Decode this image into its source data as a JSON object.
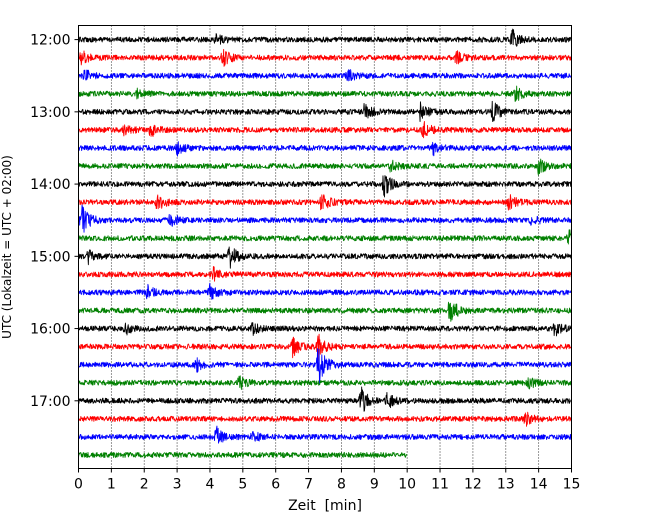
{
  "chart_data": {
    "type": "line",
    "title": "",
    "xlabel": "Zeit  [min]",
    "ylabel": "UTC (Lokalzeit = UTC + 02:00)",
    "xlim": [
      0,
      15
    ],
    "x_ticks": [
      "0",
      "1",
      "2",
      "3",
      "4",
      "5",
      "6",
      "7",
      "8",
      "9",
      "10",
      "11",
      "12",
      "13",
      "14",
      "15"
    ],
    "y_ticks": [
      "12:00",
      "13:00",
      "14:00",
      "15:00",
      "16:00",
      "17:00"
    ],
    "grid": "vertical dotted lines at each minute",
    "trace_interval_min": 15,
    "trace_colors": [
      "#000000",
      "#ff0000",
      "#0000ff",
      "#008000"
    ],
    "series": [
      {
        "start": "12:00",
        "end_min": 15,
        "color": "#000000",
        "events": [
          [
            4.2,
            5
          ],
          [
            13.2,
            9
          ]
        ]
      },
      {
        "start": "12:15",
        "end_min": 15,
        "color": "#ff0000",
        "events": [
          [
            0.1,
            7
          ],
          [
            4.4,
            8
          ],
          [
            11.5,
            6
          ]
        ]
      },
      {
        "start": "12:30",
        "end_min": 15,
        "color": "#0000ff",
        "events": [
          [
            0.2,
            6
          ],
          [
            8.2,
            6
          ]
        ]
      },
      {
        "start": "12:45",
        "end_min": 15,
        "color": "#008000",
        "events": [
          [
            1.8,
            4
          ],
          [
            13.3,
            7
          ]
        ]
      },
      {
        "start": "13:00",
        "end_min": 15,
        "color": "#000000",
        "events": [
          [
            8.7,
            8
          ],
          [
            10.4,
            9
          ],
          [
            12.6,
            10
          ]
        ]
      },
      {
        "start": "13:15",
        "end_min": 15,
        "color": "#ff0000",
        "events": [
          [
            1.4,
            5
          ],
          [
            2.2,
            7
          ],
          [
            10.5,
            8
          ]
        ]
      },
      {
        "start": "13:30",
        "end_min": 15,
        "color": "#0000ff",
        "events": [
          [
            3.0,
            6
          ],
          [
            10.8,
            6
          ]
        ]
      },
      {
        "start": "13:45",
        "end_min": 15,
        "color": "#008000",
        "events": [
          [
            14.0,
            8
          ],
          [
            9.5,
            5
          ]
        ]
      },
      {
        "start": "14:00",
        "end_min": 15,
        "color": "#000000",
        "events": [
          [
            9.3,
            12
          ]
        ]
      },
      {
        "start": "14:15",
        "end_min": 15,
        "color": "#ff0000",
        "events": [
          [
            2.4,
            8
          ],
          [
            7.4,
            9
          ],
          [
            13.1,
            8
          ]
        ]
      },
      {
        "start": "14:30",
        "end_min": 15,
        "color": "#0000ff",
        "events": [
          [
            0.1,
            18
          ],
          [
            2.8,
            7
          ],
          [
            13.8,
            5
          ]
        ]
      },
      {
        "start": "14:45",
        "end_min": 15,
        "color": "#008000",
        "events": [
          [
            14.9,
            8
          ]
        ]
      },
      {
        "start": "15:00",
        "end_min": 15,
        "color": "#000000",
        "events": [
          [
            0.3,
            6
          ],
          [
            4.6,
            12
          ]
        ]
      },
      {
        "start": "15:15",
        "end_min": 15,
        "color": "#ff0000",
        "events": [
          [
            4.1,
            6
          ]
        ]
      },
      {
        "start": "15:30",
        "end_min": 15,
        "color": "#0000ff",
        "events": [
          [
            2.1,
            6
          ],
          [
            4.0,
            7
          ]
        ]
      },
      {
        "start": "15:45",
        "end_min": 15,
        "color": "#008000",
        "events": [
          [
            11.3,
            13
          ]
        ]
      },
      {
        "start": "16:00",
        "end_min": 15,
        "color": "#000000",
        "events": [
          [
            1.4,
            6
          ],
          [
            5.3,
            5
          ],
          [
            14.5,
            7
          ]
        ]
      },
      {
        "start": "16:15",
        "end_min": 15,
        "color": "#ff0000",
        "events": [
          [
            6.5,
            10
          ],
          [
            7.3,
            12
          ]
        ]
      },
      {
        "start": "16:30",
        "end_min": 15,
        "color": "#0000ff",
        "events": [
          [
            3.6,
            6
          ],
          [
            7.3,
            24
          ]
        ]
      },
      {
        "start": "16:45",
        "end_min": 15,
        "color": "#008000",
        "events": [
          [
            4.9,
            6
          ],
          [
            13.7,
            5
          ]
        ]
      },
      {
        "start": "17:00",
        "end_min": 15,
        "color": "#000000",
        "events": [
          [
            8.6,
            13
          ],
          [
            9.4,
            7
          ]
        ]
      },
      {
        "start": "17:15",
        "end_min": 15,
        "color": "#ff0000",
        "events": [
          [
            13.6,
            6
          ]
        ]
      },
      {
        "start": "17:30",
        "end_min": 15,
        "color": "#0000ff",
        "events": [
          [
            4.2,
            9
          ],
          [
            5.3,
            5
          ]
        ]
      },
      {
        "start": "17:45",
        "end_min": 10,
        "color": "#008000",
        "events": []
      }
    ]
  }
}
